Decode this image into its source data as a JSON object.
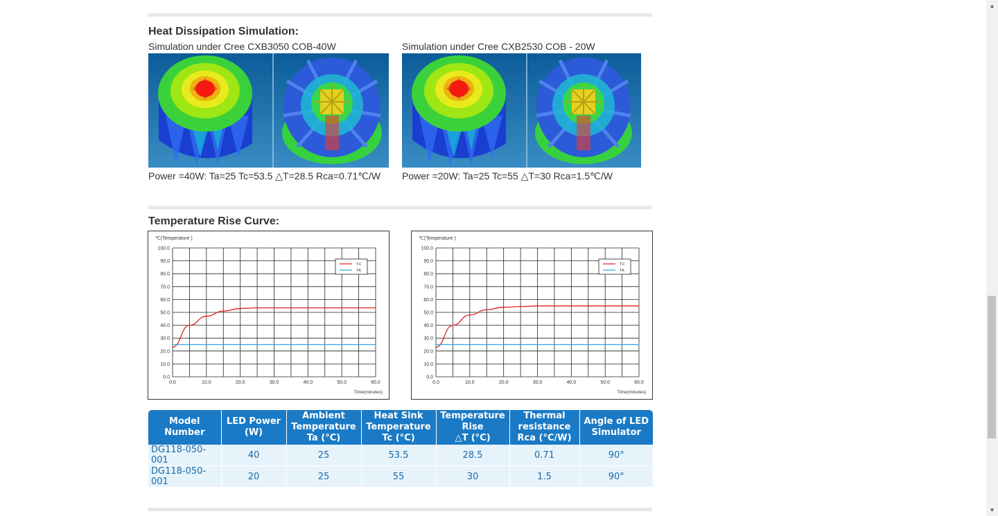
{
  "heat_section": {
    "title": "Heat Dissipation Simulation:",
    "sims": [
      {
        "caption": "Simulation under Cree CXB3050 COB-40W",
        "result": "Power =40W: Ta=25 Tc=53.5 △T=28.5 Rca=0.71℃/W"
      },
      {
        "caption": "Simulation under Cree CXB2530 COB - 20W",
        "result": "Power =20W: Ta=25 Tc=55 △T=30 Rca=1.5℃/W"
      }
    ]
  },
  "curve_section": {
    "title": "Temperature Rise Curve:"
  },
  "chart_data": [
    {
      "type": "line",
      "ylabel": "℃(Temperature )",
      "xlabel": "Time(minutes)",
      "ylim": [
        0,
        100
      ],
      "xlim": [
        0,
        60
      ],
      "yticks": [
        "0.0",
        "10.0",
        "20.0",
        "30.0",
        "40.0",
        "50.0",
        "60.0",
        "70.0",
        "80.0",
        "90.0",
        "100.0"
      ],
      "xticks": [
        "0.0",
        "10.0",
        "20.0",
        "30.0",
        "40.0",
        "50.0",
        "60.0"
      ],
      "legend": "top-right",
      "grid": true,
      "series": [
        {
          "name": "TC",
          "color": "#e02020",
          "x": [
            0,
            5,
            10,
            15,
            20,
            25,
            30,
            40,
            50,
            60
          ],
          "values": [
            23,
            40,
            47,
            51,
            53,
            53.5,
            53.5,
            53.5,
            53.5,
            53.5
          ]
        },
        {
          "name": "TA",
          "color": "#2aa8e0",
          "x": [
            0,
            60
          ],
          "values": [
            25,
            25
          ]
        }
      ]
    },
    {
      "type": "line",
      "ylabel": "℃(Temperature )",
      "xlabel": "Time(minutes)",
      "ylim": [
        0,
        100
      ],
      "xlim": [
        0,
        60
      ],
      "yticks": [
        "0.0",
        "10.0",
        "20.0",
        "30.0",
        "40.0",
        "50.0",
        "60.0",
        "70.0",
        "80.0",
        "90.0",
        "100.0"
      ],
      "xticks": [
        "0.0",
        "10.0",
        "20.0",
        "30.0",
        "40.0",
        "50.0",
        "60.0"
      ],
      "legend": "top-right",
      "grid": true,
      "series": [
        {
          "name": "TC",
          "color": "#e02020",
          "x": [
            0,
            5,
            10,
            15,
            20,
            25,
            30,
            40,
            50,
            60
          ],
          "values": [
            23,
            40,
            48,
            52,
            54,
            54.5,
            55,
            55,
            55,
            55
          ]
        },
        {
          "name": "TA",
          "color": "#2aa8e0",
          "x": [
            0,
            60
          ],
          "values": [
            25,
            25
          ]
        }
      ]
    }
  ],
  "table": {
    "headers": [
      [
        "Model",
        "Number"
      ],
      [
        "LED Power",
        "(W)"
      ],
      [
        "Ambient",
        "Temperature",
        "Ta (°C)"
      ],
      [
        "Heat Sink",
        "Temperature",
        "Tc (°C)"
      ],
      [
        "Temperature",
        "Rise",
        "△T (°C)"
      ],
      [
        "Thermal",
        "resistance",
        "Rca (°C/W)"
      ],
      [
        "Angle of LED",
        "Simulator"
      ]
    ],
    "rows": [
      [
        "DG118-050-001",
        "40",
        "25",
        "53.5",
        "28.5",
        "0.71",
        "90°"
      ],
      [
        "DG118-050-001",
        "20",
        "25",
        "55",
        "30",
        "1.5",
        "90°"
      ]
    ]
  },
  "scrollbar": {
    "up_icon": "▲",
    "down_icon": "▼"
  }
}
